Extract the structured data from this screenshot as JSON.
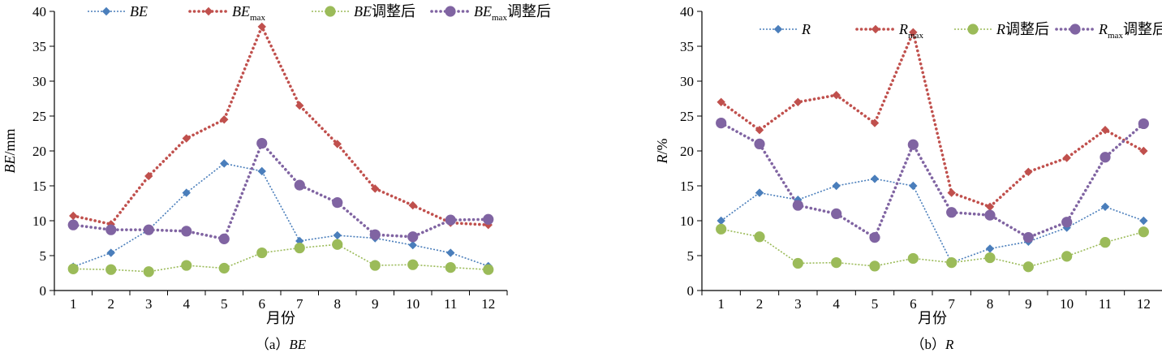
{
  "chart_data": [
    {
      "type": "line",
      "caption_prefix": "（a）",
      "caption_var": "BE",
      "xlabel": "月份",
      "ylabel_var": "BE",
      "ylabel_unit": "/mm",
      "ylim": [
        0,
        40
      ],
      "yticks": [
        0,
        5,
        10,
        15,
        20,
        25,
        30,
        35,
        40
      ],
      "x": [
        1,
        2,
        3,
        4,
        5,
        6,
        7,
        8,
        9,
        10,
        11,
        12
      ],
      "legend_position": "top",
      "series": [
        {
          "var": "BE",
          "sub": "",
          "suffix": "",
          "marker": "diamond",
          "color": "#4a7ebb",
          "style": "dotted-thin",
          "values": [
            3.4,
            5.4,
            8.7,
            14.0,
            18.2,
            17.1,
            7.1,
            7.9,
            7.5,
            6.5,
            5.4,
            3.5
          ]
        },
        {
          "var": "BE",
          "sub": "max",
          "suffix": "",
          "marker": "diamond",
          "color": "#c0504d",
          "style": "dotted-thick",
          "values": [
            10.7,
            9.5,
            16.4,
            21.8,
            24.5,
            37.8,
            26.5,
            21.0,
            14.6,
            12.2,
            9.7,
            9.4
          ]
        },
        {
          "var": "BE",
          "sub": "",
          "suffix": "调整后",
          "marker": "circle",
          "color": "#9bbb59",
          "style": "dotted-thin",
          "values": [
            3.1,
            3.0,
            2.7,
            3.6,
            3.2,
            5.4,
            6.1,
            6.6,
            3.6,
            3.7,
            3.3,
            3.0
          ]
        },
        {
          "var": "BE",
          "sub": "max",
          "suffix": "调整后",
          "marker": "circle",
          "color": "#8064a2",
          "style": "dotted-thick",
          "values": [
            9.4,
            8.7,
            8.7,
            8.5,
            7.4,
            21.1,
            15.1,
            12.6,
            8.0,
            7.7,
            10.1,
            10.2
          ]
        }
      ]
    },
    {
      "type": "line",
      "caption_prefix": "（b）",
      "caption_var": "R",
      "xlabel": "月份",
      "ylabel_var": "R",
      "ylabel_unit": "/%",
      "ylim": [
        0,
        40
      ],
      "yticks": [
        0,
        5,
        10,
        15,
        20,
        25,
        30,
        35,
        40
      ],
      "x": [
        1,
        2,
        3,
        4,
        5,
        6,
        7,
        8,
        9,
        10,
        11,
        12
      ],
      "legend_position": "top",
      "series": [
        {
          "var": "R",
          "sub": "",
          "suffix": "",
          "marker": "diamond",
          "color": "#4a7ebb",
          "style": "dotted-thin",
          "values": [
            10,
            14,
            13,
            15,
            16,
            15,
            4,
            6,
            7,
            9,
            12,
            10
          ]
        },
        {
          "var": "R",
          "sub": "max",
          "suffix": "",
          "marker": "diamond",
          "color": "#c0504d",
          "style": "dotted-thick",
          "values": [
            27,
            23,
            27,
            28,
            24,
            37,
            14,
            12,
            17,
            19,
            23,
            20
          ]
        },
        {
          "var": "R",
          "sub": "",
          "suffix": "调整后",
          "marker": "circle",
          "color": "#9bbb59",
          "style": "dotted-thin",
          "values": [
            8.8,
            7.7,
            3.9,
            4.0,
            3.5,
            4.6,
            4.0,
            4.7,
            3.4,
            4.9,
            6.9,
            8.4
          ]
        },
        {
          "var": "R",
          "sub": "max",
          "suffix": "调整后",
          "marker": "circle",
          "color": "#8064a2",
          "style": "dotted-thick",
          "values": [
            24.0,
            21.0,
            12.2,
            11.0,
            7.6,
            20.9,
            11.2,
            10.8,
            7.6,
            9.8,
            19.1,
            23.9
          ]
        }
      ]
    }
  ]
}
